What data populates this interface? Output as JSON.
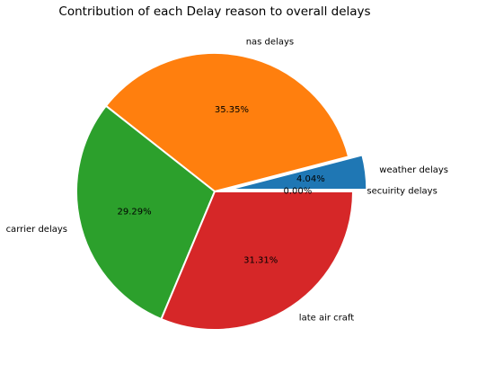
{
  "chart_data": {
    "type": "pie",
    "title": "Contribution of each Delay reason to overall delays",
    "start_angle": 0,
    "direction": "counterclockwise",
    "slices": [
      {
        "label": "weather delays",
        "value": 4.04,
        "pct_label": "4.04%",
        "color": "#1f77b4",
        "exploded": true
      },
      {
        "label": "nas delays",
        "value": 35.35,
        "pct_label": "35.35%",
        "color": "#ff7f0e",
        "exploded": false
      },
      {
        "label": "carrier delays",
        "value": 29.29,
        "pct_label": "29.29%",
        "color": "#2ca02c",
        "exploded": false
      },
      {
        "label": "late air craft",
        "value": 31.31,
        "pct_label": "31.31%",
        "color": "#d62728",
        "exploded": false
      },
      {
        "label": "secuirity delays",
        "value": 0.0,
        "pct_label": "0.00%",
        "color": "#9467bd",
        "exploded": false
      }
    ]
  }
}
